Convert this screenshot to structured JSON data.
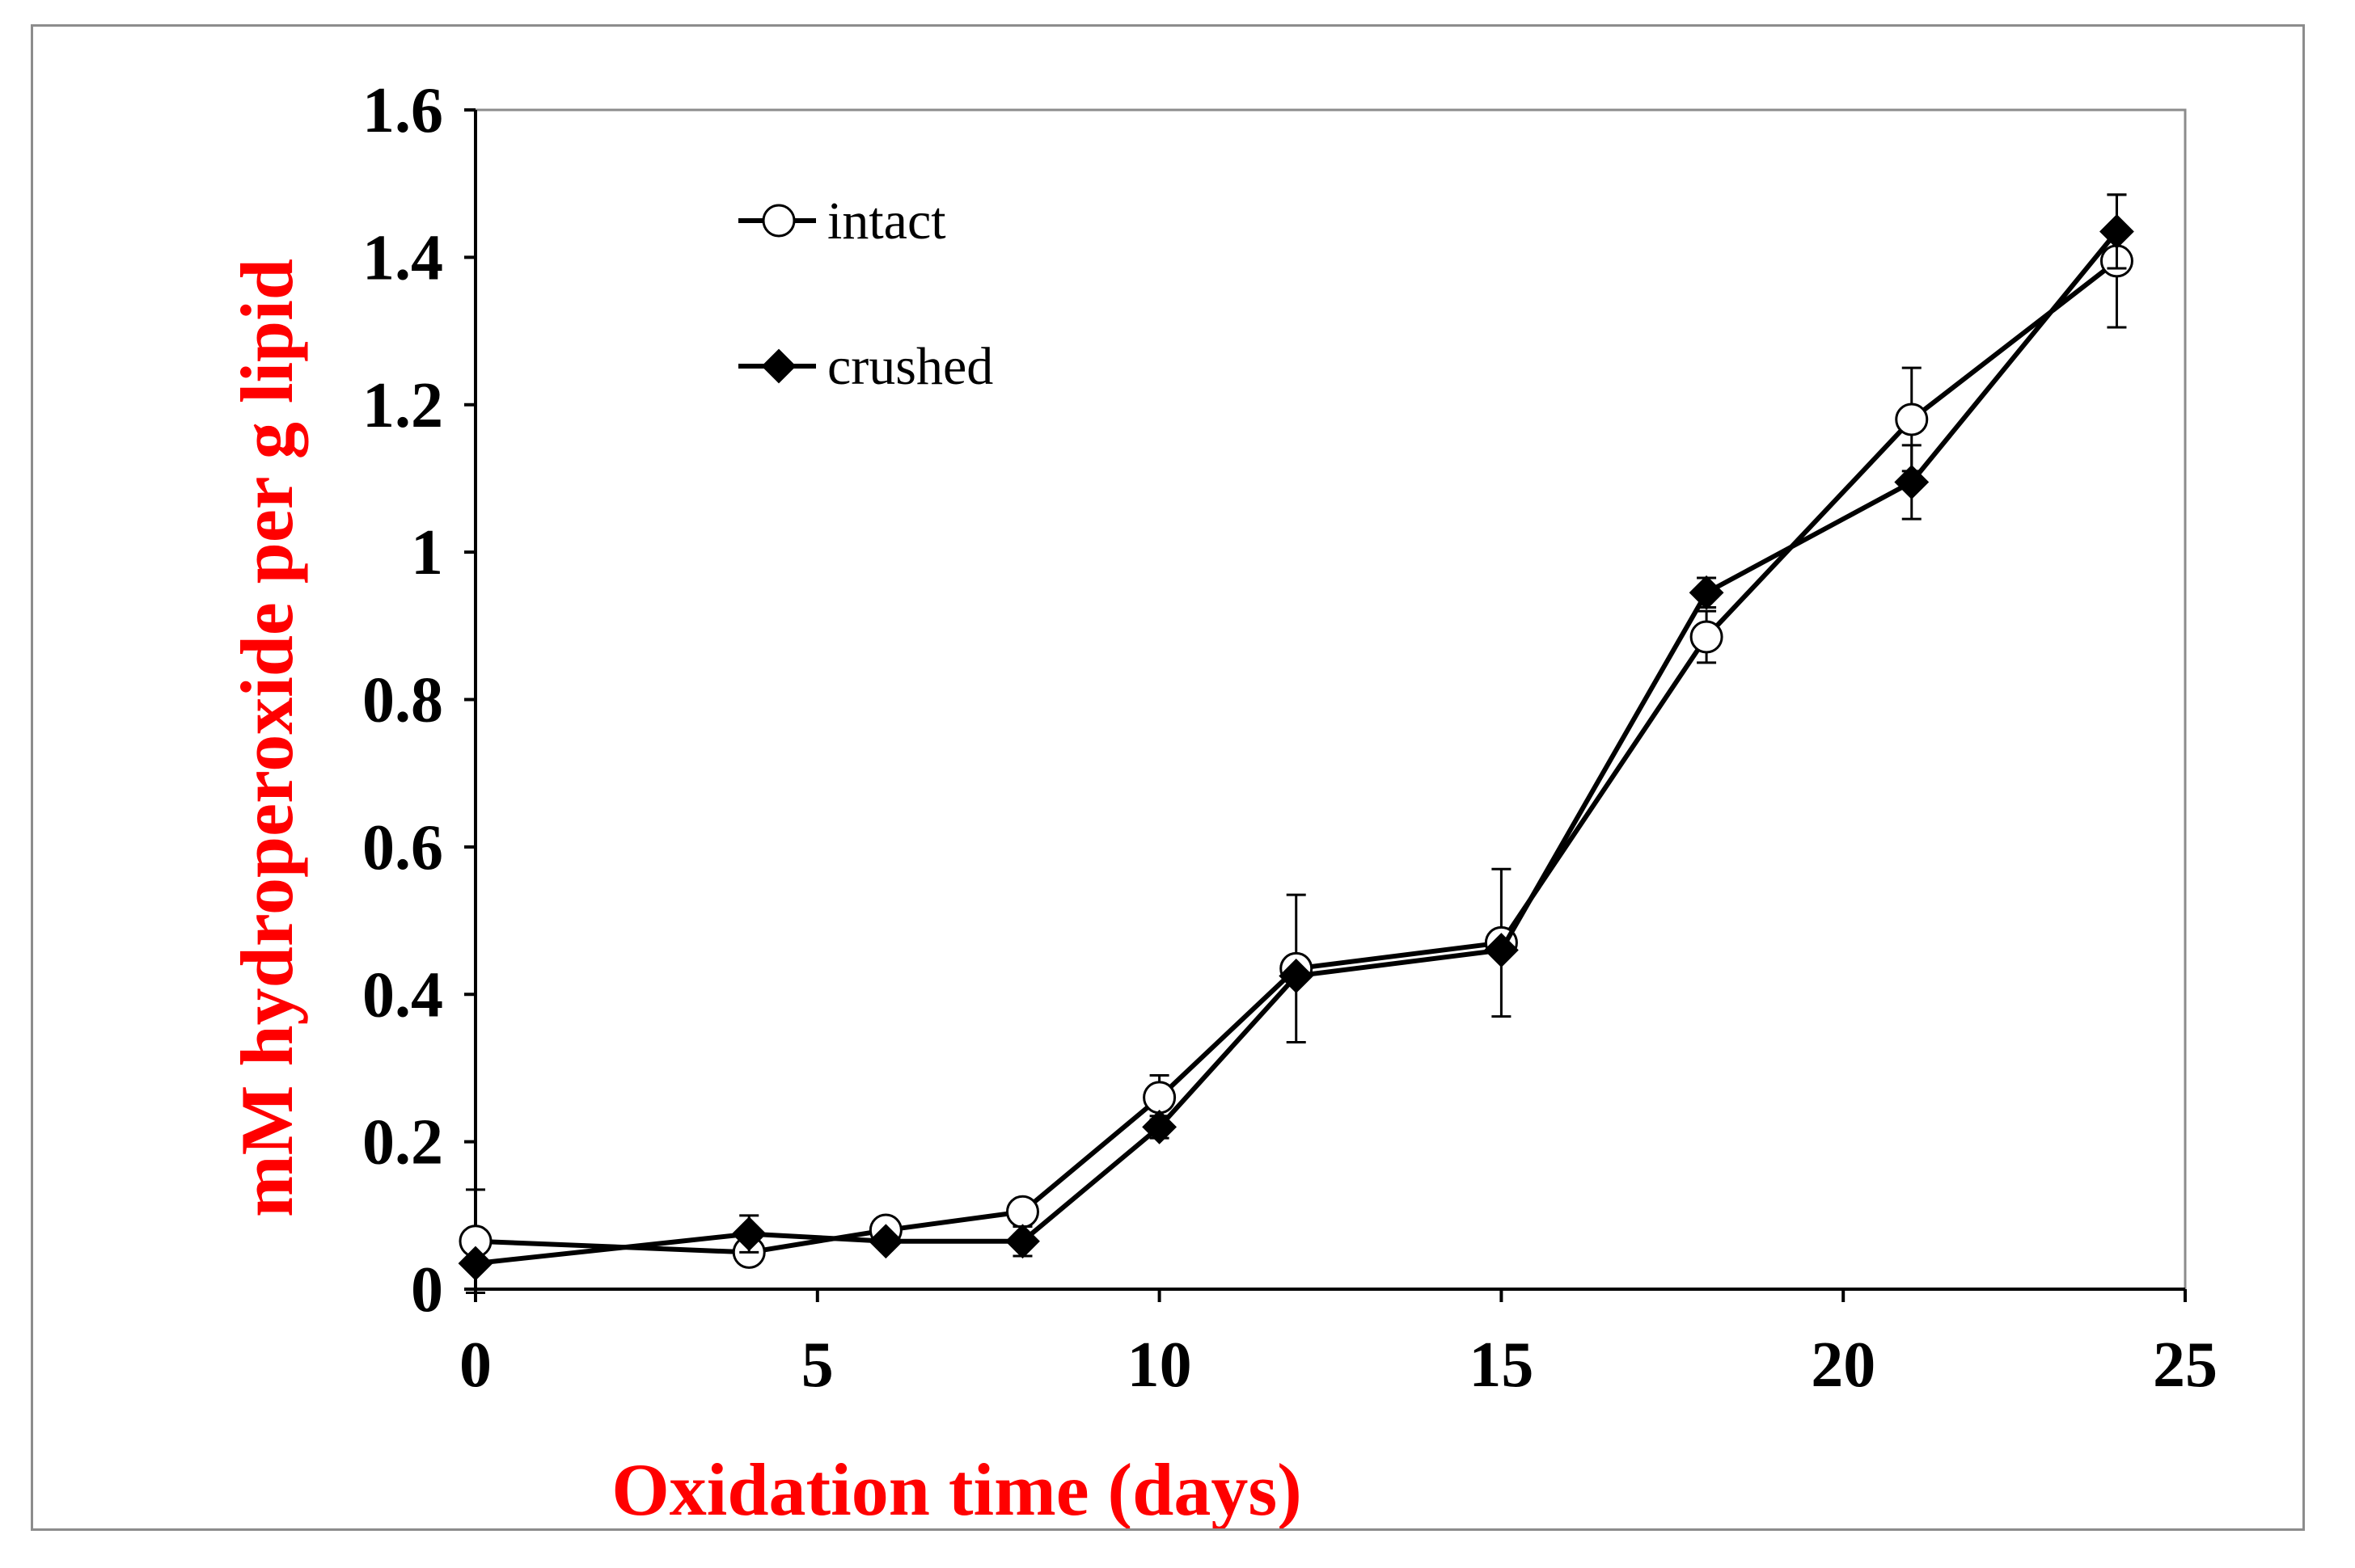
{
  "chart_data": {
    "type": "line",
    "title": "",
    "xlabel": "Oxidation time (days)",
    "ylabel": "mM hydroperoxide per g lipid",
    "label_color": "#ff0000",
    "xlim": [
      0,
      25
    ],
    "ylim": [
      0,
      1.6
    ],
    "xticks": [
      0,
      5,
      10,
      15,
      20,
      25
    ],
    "xtick_labels": [
      "0",
      "5",
      "10",
      "15",
      "20",
      "25"
    ],
    "yticks": [
      0,
      0.2,
      0.4,
      0.6,
      0.8,
      1.0,
      1.2,
      1.4,
      1.6
    ],
    "ytick_labels": [
      "0",
      "0.2",
      "0.4",
      "0.6",
      "0.8",
      "1",
      "1.2",
      "1.4",
      "1.6"
    ],
    "grid": false,
    "legend_position": "top-left",
    "series": [
      {
        "name": "intact",
        "marker": "open-circle",
        "color": "#000000",
        "x": [
          0,
          4,
          6,
          8,
          10,
          12,
          15,
          18,
          21,
          24
        ],
        "y": [
          0.065,
          0.05,
          0.08,
          0.105,
          0.26,
          0.435,
          0.47,
          0.885,
          1.18,
          1.395
        ],
        "error": [
          0.07,
          0.0,
          0.0,
          0.015,
          0.03,
          0.1,
          0.1,
          0.035,
          0.07,
          0.09
        ]
      },
      {
        "name": "crushed",
        "marker": "filled-diamond",
        "color": "#000000",
        "x": [
          0,
          4,
          6,
          8,
          10,
          12,
          15,
          18,
          21,
          24
        ],
        "y": [
          0.035,
          0.075,
          0.065,
          0.065,
          0.22,
          0.425,
          0.46,
          0.945,
          1.095,
          1.435
        ],
        "error": [
          0.0,
          0.025,
          0.0,
          0.02,
          0.015,
          0.0,
          0.0,
          0.02,
          0.05,
          0.05
        ]
      }
    ]
  }
}
